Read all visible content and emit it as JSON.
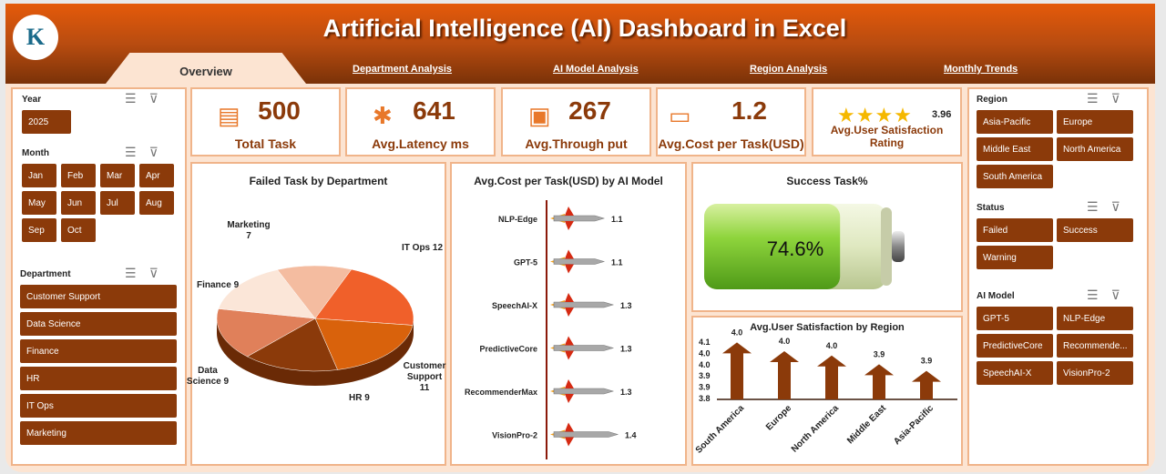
{
  "header": {
    "title": "Artificial Intelligence (AI) Dashboard in Excel",
    "logo_text": "K"
  },
  "tabs": [
    "Overview",
    "Department Analysis",
    "AI Model Analysis",
    "Region Analysis",
    "Monthly Trends"
  ],
  "filters": {
    "year": {
      "label": "Year",
      "items": [
        "2025"
      ]
    },
    "month": {
      "label": "Month",
      "items": [
        "Jan",
        "Feb",
        "Mar",
        "Apr",
        "May",
        "Jun",
        "Jul",
        "Aug",
        "Sep",
        "Oct"
      ]
    },
    "department": {
      "label": "Department",
      "items": [
        "Customer Support",
        "Data Science",
        "Finance",
        "HR",
        "IT Ops",
        "Marketing"
      ]
    },
    "region": {
      "label": "Region",
      "items": [
        "Asia-Pacific",
        "Europe",
        "Middle East",
        "North America",
        "South America"
      ]
    },
    "status": {
      "label": "Status",
      "items": [
        "Failed",
        "Success",
        "Warning"
      ]
    },
    "ai_model": {
      "label": "AI Model",
      "items": [
        "GPT-5",
        "NLP-Edge",
        "PredictiveCore",
        "Recommende...",
        "SpeechAI-X",
        "VisionPro-2"
      ]
    }
  },
  "kpis": [
    {
      "value": "500",
      "label": "Total Task",
      "icon": "list-icon"
    },
    {
      "value": "641",
      "label": "Avg.Latency ms",
      "icon": "network-icon"
    },
    {
      "value": "267",
      "label": "Avg.Through put",
      "icon": "monitor-users-icon"
    },
    {
      "value": "1.2",
      "label": "Avg.Cost per Task(USD)",
      "icon": "money-icon"
    },
    {
      "value": "3.96",
      "label": "Avg.User Satisfaction Rating",
      "icon": "star-icon",
      "stars": 4
    }
  ],
  "colors": {
    "accent": "#8b3a0a",
    "header": "#c4500c",
    "border": "#f0b48a"
  },
  "chart_data": [
    {
      "type": "pie",
      "title": "Failed Task by Department",
      "categories": [
        "IT Ops",
        "Customer Support",
        "HR",
        "Data Science",
        "Finance",
        "Marketing"
      ],
      "values": [
        12,
        11,
        9,
        9,
        9,
        7
      ],
      "data_labels": [
        "IT Ops 12",
        "Customer Support 11",
        "HR 9",
        "Data Science 9",
        "Finance  9",
        "Marketing 7"
      ]
    },
    {
      "type": "bar",
      "title": "Avg.Cost per Task(USD) by AI Model",
      "categories": [
        "NLP-Edge",
        "GPT-5",
        "SpeechAI-X",
        "PredictiveCore",
        "RecommenderMax",
        "VisionPro-2"
      ],
      "values": [
        1.1,
        1.1,
        1.3,
        1.3,
        1.3,
        1.4
      ],
      "data_labels": [
        "1.1",
        "1.1",
        "1.3",
        "1.3",
        "1.3",
        "1.4"
      ]
    },
    {
      "type": "bar",
      "title": "Success Task%",
      "values": [
        74.6
      ],
      "data_labels": [
        "74.6%"
      ]
    },
    {
      "type": "bar",
      "title": "Avg.User Satisfaction by Region",
      "categories": [
        "South America",
        "Europe",
        "North America",
        "Middle East",
        "Asia-Pacific"
      ],
      "values": [
        4.04,
        4.0,
        3.98,
        3.94,
        3.91
      ],
      "data_labels": [
        "4.0",
        "4.0",
        "4.0",
        "3.9",
        "3.9"
      ],
      "ylim": [
        3.8,
        4.05
      ],
      "yticks": [
        "4.1",
        "4.0",
        "4.0",
        "3.9",
        "3.9",
        "3.8"
      ]
    }
  ]
}
